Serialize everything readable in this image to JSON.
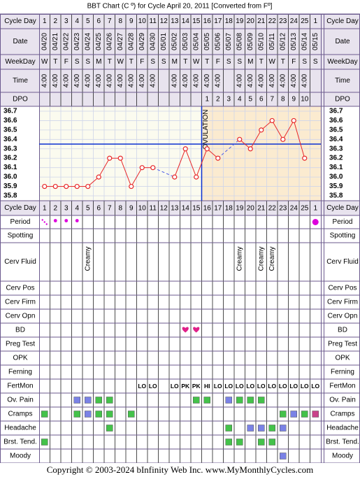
{
  "page_title": "BBT Chart (C º) for Cycle April 20, 2011  [Converted from Fº]",
  "footer": "Copyright © 2003-2024 bInfinity Web Inc.    www.MyMonthlyCycles.com",
  "row_labels": {
    "cycle_day": "Cycle Day",
    "date": "Date",
    "weekday": "WeekDay",
    "time": "Time",
    "dpo": "DPO",
    "period": "Period",
    "spotting": "Spotting",
    "cerv_fluid": "Cerv Fluid",
    "cerv_pos": "Cerv Pos",
    "cerv_firm": "Cerv Firm",
    "cerv_opn": "Cerv Opn",
    "bd": "BD",
    "preg_test": "Preg Test",
    "opk": "OPK",
    "ferning": "Ferning",
    "fertmon": "FertMon",
    "ov_pain": "Ov. Pain",
    "cramps": "Cramps",
    "headache": "Headache",
    "brst_tend": "Brst. Tend.",
    "moody": "Moody"
  },
  "ovulation_label": "OVULATION",
  "colors": {
    "border": "#6b5a8e",
    "header_bg": "#e8e3ee",
    "chart_pre": "#fbfbef",
    "chart_post": "#fbebd0",
    "grid": "#cfd5ea",
    "line": "#e8282a",
    "marker_edge": "#e8282a",
    "coverline": "#0a2fd1",
    "ovulation_line": "#0a2fd1",
    "gap_line": "#4a5be8",
    "period_dot": "#dd00dd",
    "heart": "#e0208a",
    "fertmon_text": "#1b7f1b",
    "sym_green": "#44c24a",
    "sym_blue": "#7a82e6",
    "sym_magenta": "#c9438a"
  },
  "days": [
    {
      "cd": "1",
      "date": "04/20",
      "wd": "W",
      "time": "4:00"
    },
    {
      "cd": "2",
      "date": "04/21",
      "wd": "T",
      "time": "4:00"
    },
    {
      "cd": "3",
      "date": "04/22",
      "wd": "F",
      "time": "4:00"
    },
    {
      "cd": "4",
      "date": "04/23",
      "wd": "S",
      "time": "4:00"
    },
    {
      "cd": "5",
      "date": "04/24",
      "wd": "S",
      "time": "4:00"
    },
    {
      "cd": "6",
      "date": "04/25",
      "wd": "M",
      "time": "4:00"
    },
    {
      "cd": "7",
      "date": "04/26",
      "wd": "T",
      "time": "4:00"
    },
    {
      "cd": "8",
      "date": "04/27",
      "wd": "W",
      "time": "4:00"
    },
    {
      "cd": "9",
      "date": "04/28",
      "wd": "T",
      "time": "4:00"
    },
    {
      "cd": "10",
      "date": "04/29",
      "wd": "F",
      "time": "4:00"
    },
    {
      "cd": "11",
      "date": "04/30",
      "wd": "S",
      "time": "4:00"
    },
    {
      "cd": "12",
      "date": "05/01",
      "wd": "S",
      "time": ""
    },
    {
      "cd": "13",
      "date": "05/02",
      "wd": "M",
      "time": "4:00"
    },
    {
      "cd": "14",
      "date": "05/03",
      "wd": "T",
      "time": "4:00"
    },
    {
      "cd": "15",
      "date": "05/04",
      "wd": "W",
      "time": "4:00"
    },
    {
      "cd": "16",
      "date": "05/05",
      "wd": "T",
      "time": "4:00"
    },
    {
      "cd": "17",
      "date": "05/06",
      "wd": "F",
      "time": "4:00"
    },
    {
      "cd": "18",
      "date": "05/07",
      "wd": "S",
      "time": ""
    },
    {
      "cd": "19",
      "date": "05/08",
      "wd": "S",
      "time": "4:00"
    },
    {
      "cd": "20",
      "date": "05/09",
      "wd": "M",
      "time": "4:00"
    },
    {
      "cd": "21",
      "date": "05/10",
      "wd": "T",
      "time": "4:00"
    },
    {
      "cd": "22",
      "date": "05/11",
      "wd": "W",
      "time": "4:00"
    },
    {
      "cd": "23",
      "date": "05/12",
      "wd": "T",
      "time": "4:00"
    },
    {
      "cd": "24",
      "date": "05/13",
      "wd": "F",
      "time": "4:00"
    },
    {
      "cd": "25",
      "date": "05/14",
      "wd": "S",
      "time": "4:00"
    },
    {
      "cd": "1",
      "date": "05/15",
      "wd": "S",
      "time": ""
    }
  ],
  "dpo": [
    "",
    "",
    "",
    "",
    "",
    "",
    "",
    "",
    "",
    "",
    "",
    "",
    "",
    "",
    "",
    "1",
    "2",
    "3",
    "4",
    "5",
    "6",
    "7",
    "8",
    "9",
    "10",
    ""
  ],
  "chart_data": {
    "type": "line",
    "title": "BBT Chart (C º) for Cycle April 20, 2011  [Converted from Fº]",
    "y_ticks": [
      "36.7",
      "36.6",
      "36.5",
      "36.4",
      "36.3",
      "36.2",
      "36.1",
      "36.0",
      "35.9",
      "35.8"
    ],
    "ylim": [
      35.8,
      36.7
    ],
    "temperatures": [
      35.9,
      35.9,
      35.9,
      35.9,
      35.9,
      36.0,
      36.2,
      36.2,
      35.9,
      36.1,
      36.1,
      null,
      36.0,
      36.3,
      36.0,
      36.3,
      36.2,
      null,
      36.4,
      36.3,
      36.5,
      36.6,
      36.4,
      36.6,
      36.2,
      null
    ],
    "coverline": 36.35,
    "ovulation_after_day_index": 14
  },
  "period": [
    "flow-spotting",
    "light",
    "light",
    "light",
    "",
    "",
    "",
    "",
    "",
    "",
    "",
    "",
    "",
    "",
    "",
    "",
    "",
    "",
    "",
    "",
    "",
    "",
    "",
    "",
    "",
    "heavy"
  ],
  "cerv_fluid": [
    "",
    "",
    "",
    "",
    "Creamy",
    "",
    "",
    "",
    "",
    "",
    "",
    "",
    "",
    "",
    "",
    "",
    "",
    "",
    "Creamy",
    "",
    "Creamy",
    "Creamy",
    "",
    "",
    "",
    ""
  ],
  "bd": [
    "",
    "",
    "",
    "",
    "",
    "",
    "",
    "",
    "",
    "",
    "",
    "",
    "",
    "heart",
    "heart",
    "",
    "",
    "",
    "",
    "",
    "",
    "",
    "",
    "",
    "",
    ""
  ],
  "fertmon": [
    "",
    "",
    "",
    "",
    "",
    "",
    "",
    "",
    "",
    "LO",
    "LO",
    "",
    "LO",
    "PK",
    "PK",
    "HI",
    "LO",
    "LO",
    "LO",
    "LO",
    "LO",
    "LO",
    "LO",
    "LO",
    "LO",
    "LO"
  ],
  "ov_pain": [
    "",
    "",
    "",
    "blue",
    "blue",
    "green",
    "green",
    "",
    "",
    "",
    "",
    "",
    "",
    "",
    "green",
    "green",
    "",
    "blue",
    "green",
    "green",
    "green",
    "",
    "",
    "",
    "",
    ""
  ],
  "cramps": [
    "green",
    "",
    "",
    "green",
    "blue",
    "green",
    "green",
    "",
    "green",
    "",
    "",
    "",
    "",
    "",
    "",
    "",
    "",
    "",
    "",
    "",
    "",
    "",
    "green",
    "blue",
    "",
    "green-magenta"
  ],
  "headache": [
    "",
    "",
    "",
    "",
    "",
    "",
    "green",
    "",
    "",
    "",
    "",
    "",
    "",
    "",
    "",
    "",
    "",
    "green",
    "",
    "blue",
    "blue",
    "green",
    "blue",
    "",
    "",
    ""
  ],
  "brst_tend": [
    "green",
    "",
    "",
    "",
    "",
    "",
    "",
    "",
    "",
    "",
    "",
    "",
    "",
    "",
    "",
    "",
    "",
    "green",
    "green",
    "",
    "green",
    "green",
    "",
    "",
    "",
    ""
  ],
  "moody": [
    "",
    "",
    "",
    "",
    "",
    "",
    "",
    "",
    "",
    "",
    "",
    "",
    "",
    "",
    "",
    "",
    "",
    "",
    "",
    "",
    "",
    "",
    "blue",
    "",
    "",
    ""
  ]
}
